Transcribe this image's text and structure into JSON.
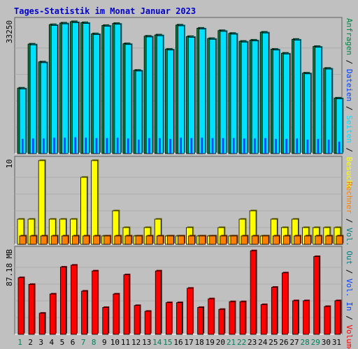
{
  "title": "Tages-Statistik im Monat Januar 2023",
  "colors": {
    "background": "#c0c0c0",
    "title": "#0000cc",
    "hits": "#008040",
    "files": "#0040ff",
    "pages": "#00e0ff",
    "visits": "#ffff00",
    "sites": "#ff8000",
    "kbytes": "#ff0000",
    "day_normal": "#000000",
    "day_weekend": "#00805c"
  },
  "chart_data": [
    {
      "type": "bar",
      "name": "hits-files-pages",
      "categories": [
        "1",
        "2",
        "3",
        "4",
        "5",
        "6",
        "7",
        "8",
        "9",
        "10",
        "11",
        "12",
        "13",
        "14",
        "15",
        "16",
        "17",
        "18",
        "19",
        "20",
        "21",
        "22",
        "23",
        "24",
        "25",
        "26",
        "27",
        "28",
        "29",
        "30",
        "31"
      ],
      "weekend_days": [
        "1",
        "7",
        "8",
        "14",
        "15",
        "21",
        "22",
        "28",
        "29"
      ],
      "ymax_label": "33250",
      "ylim": [
        0,
        33250
      ],
      "series": [
        {
          "name": "Anfragen",
          "color": "#008040",
          "values": [
            16500,
            27600,
            23100,
            32500,
            32900,
            33250,
            33000,
            30200,
            32300,
            32800,
            27700,
            21000,
            29600,
            29900,
            26300,
            32400,
            29500,
            31600,
            29000,
            31000,
            30300,
            28300,
            28600,
            30600,
            26300,
            25300,
            28800,
            20300,
            27000,
            21500,
            14000
          ]
        },
        {
          "name": "Dateien",
          "color": "#0040ff",
          "values": [
            3700,
            3800,
            3800,
            4000,
            4000,
            4100,
            4000,
            3900,
            3900,
            4000,
            3800,
            3500,
            3900,
            3900,
            3700,
            4000,
            3900,
            4000,
            3900,
            3900,
            3900,
            3800,
            3800,
            3900,
            3700,
            3700,
            3800,
            3500,
            3700,
            3500,
            3000
          ]
        },
        {
          "name": "Seiten",
          "color": "#00e0ff",
          "values": [
            16300,
            27400,
            22900,
            32300,
            32700,
            33000,
            32800,
            30000,
            32100,
            32600,
            27500,
            20800,
            29400,
            29700,
            26100,
            32200,
            29300,
            31400,
            28800,
            30800,
            30100,
            28100,
            28400,
            30400,
            26100,
            25100,
            28600,
            20100,
            26800,
            21300,
            13800
          ]
        }
      ]
    },
    {
      "type": "bar",
      "name": "visits-sites",
      "categories": [
        "1",
        "2",
        "3",
        "4",
        "5",
        "6",
        "7",
        "8",
        "9",
        "10",
        "11",
        "12",
        "13",
        "14",
        "15",
        "16",
        "17",
        "18",
        "19",
        "20",
        "21",
        "22",
        "23",
        "24",
        "25",
        "26",
        "27",
        "28",
        "29",
        "30",
        "31"
      ],
      "ymax_label": "10",
      "ylim": [
        0,
        10
      ],
      "series": [
        {
          "name": "Besuche",
          "color": "#ffff00",
          "values": [
            3,
            3,
            10,
            3,
            3,
            3,
            8,
            10,
            1,
            4,
            2,
            1,
            2,
            3,
            1,
            1,
            2,
            1,
            1,
            2,
            1,
            3,
            4,
            1,
            3,
            2,
            3,
            2,
            2,
            2,
            2
          ]
        },
        {
          "name": "Rechner",
          "color": "#ff8000",
          "values": [
            1,
            1,
            1,
            1,
            1,
            1,
            1,
            1,
            1,
            1,
            1,
            1,
            1,
            1,
            1,
            1,
            1,
            1,
            1,
            1,
            1,
            1,
            1,
            1,
            1,
            1,
            1,
            1,
            1,
            1,
            1
          ]
        }
      ]
    },
    {
      "type": "bar",
      "name": "kbytes",
      "categories": [
        "1",
        "2",
        "3",
        "4",
        "5",
        "6",
        "7",
        "8",
        "9",
        "10",
        "11",
        "12",
        "13",
        "14",
        "15",
        "16",
        "17",
        "18",
        "19",
        "20",
        "21",
        "22",
        "23",
        "24",
        "25",
        "26",
        "27",
        "28",
        "29",
        "30",
        "31"
      ],
      "ymax_label": "87.18 MB",
      "ylim": [
        0,
        87.18
      ],
      "series": [
        {
          "name": "Volumen",
          "color": "#ff0000",
          "values": [
            59,
            52,
            22,
            42,
            70,
            72,
            45,
            66,
            28,
            42,
            62,
            30,
            24,
            66,
            33,
            33,
            48,
            28,
            37,
            26,
            34,
            34,
            87,
            31,
            49,
            64,
            35,
            35,
            81,
            29,
            35
          ]
        }
      ]
    }
  ],
  "legend_top": [
    {
      "text": "Anfragen",
      "color": "#008040"
    },
    {
      "text": " / ",
      "color": "#000000"
    },
    {
      "text": "Dateien",
      "color": "#0040ff"
    },
    {
      "text": " / ",
      "color": "#000000"
    },
    {
      "text": "Seiten",
      "color": "#00e0ff"
    },
    {
      "text": " / ",
      "color": "#000000"
    },
    {
      "text": "Besuche",
      "color": "#ffff00"
    }
  ],
  "legend_mid": [
    {
      "text": "Rechner",
      "color": "#ff8000"
    },
    {
      "text": " / ",
      "color": "#000000"
    },
    {
      "text": "Vol. Out",
      "color": "#008080"
    },
    {
      "text": " / ",
      "color": "#000000"
    },
    {
      "text": "Vol. In",
      "color": "#0040ff"
    },
    {
      "text": " / ",
      "color": "#000000"
    },
    {
      "text": "Volumen",
      "color": "#ff0000"
    }
  ]
}
